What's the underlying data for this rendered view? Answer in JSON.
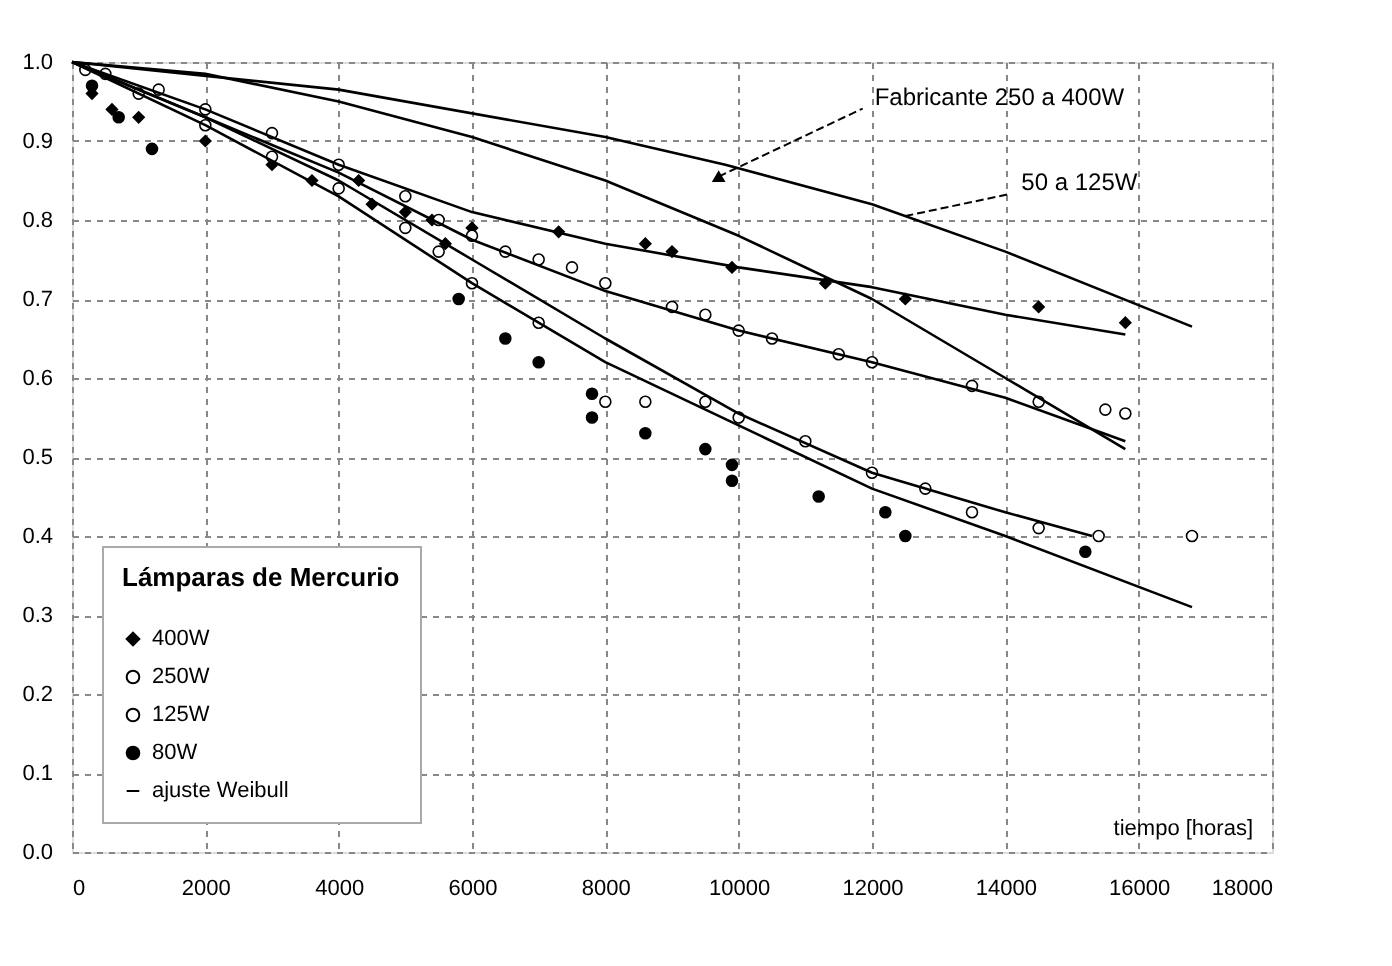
{
  "chart_data": {
    "type": "scatter",
    "xlabel": "tiempo [horas]",
    "legend_title": "Lámparas de Mercurio",
    "xlim": [
      0,
      18000
    ],
    "ylim": [
      0,
      1.0
    ],
    "xticks": [
      0,
      2000,
      4000,
      6000,
      8000,
      10000,
      12000,
      14000,
      16000,
      18000
    ],
    "yticks": [
      {
        "value": 0,
        "label": "0.0"
      },
      0.1,
      0.2,
      0.3,
      0.4,
      0.5,
      0.6,
      0.7,
      0.8,
      0.9,
      {
        "value": 1,
        "label": "1.0"
      }
    ],
    "grid": true,
    "legend": "bottom left",
    "annotations": [
      {
        "text": "Fabricante 250 a 400W",
        "x": 9700,
        "y": 0.855
      },
      {
        "text": "50 a 125W",
        "x": 12500,
        "y": 0.805
      }
    ],
    "series": [
      {
        "name": "400W",
        "marker": "diamond",
        "color": "#000000",
        "x": [
          300,
          600,
          1000,
          2000,
          3000,
          3600,
          4300,
          4500,
          5000,
          5400,
          5600,
          6000,
          7300,
          8600,
          9000,
          9900,
          11300,
          12500,
          14500,
          15800
        ],
        "values": [
          0.96,
          0.94,
          0.93,
          0.9,
          0.87,
          0.85,
          0.85,
          0.82,
          0.81,
          0.8,
          0.77,
          0.79,
          0.785,
          0.77,
          0.76,
          0.74,
          0.72,
          0.7,
          0.69,
          0.67
        ]
      },
      {
        "name": "250W",
        "marker": "circle",
        "color": "#ffffff",
        "x": [
          500,
          1300,
          2000,
          3000,
          4000,
          5000,
          5500,
          6000,
          6500,
          7000,
          7500,
          8000,
          9000,
          9500,
          10000,
          10500,
          11500,
          12000,
          13500,
          14500,
          15500,
          15800
        ],
        "values": [
          0.985,
          0.965,
          0.94,
          0.91,
          0.87,
          0.83,
          0.8,
          0.78,
          0.76,
          0.75,
          0.74,
          0.72,
          0.69,
          0.68,
          0.66,
          0.65,
          0.63,
          0.62,
          0.59,
          0.57,
          0.56,
          0.555
        ]
      },
      {
        "name": "125W",
        "marker": "circle",
        "color": "#ffffff",
        "x": [
          200,
          1000,
          2000,
          3000,
          4000,
          5000,
          5500,
          6000,
          7000,
          8000,
          8600,
          9500,
          10000,
          11000,
          12000,
          12800,
          13500,
          14500,
          15400,
          16800
        ],
        "values": [
          0.99,
          0.96,
          0.92,
          0.88,
          0.84,
          0.79,
          0.76,
          0.72,
          0.67,
          0.57,
          0.57,
          0.57,
          0.55,
          0.52,
          0.48,
          0.46,
          0.43,
          0.41,
          0.4,
          0.4
        ]
      },
      {
        "name": "80W",
        "marker": "circle",
        "color": "#000000",
        "x": [
          300,
          700,
          1200,
          5800,
          6500,
          7000,
          7800,
          7800,
          8600,
          9500,
          9900,
          9900,
          11200,
          12200,
          12500,
          15200
        ],
        "values": [
          0.97,
          0.93,
          0.89,
          0.7,
          0.65,
          0.62,
          0.58,
          0.55,
          0.53,
          0.51,
          0.49,
          0.47,
          0.45,
          0.43,
          0.4,
          0.38
        ]
      },
      {
        "name": "ajuste Weibull",
        "type": "line",
        "marker": "none",
        "color": "#000000",
        "x": [
          0,
          2000,
          4000,
          6000,
          8000,
          10000,
          12000,
          14000,
          15800
        ],
        "values": [
          1,
          0.94,
          0.87,
          0.81,
          0.77,
          0.74,
          0.715,
          0.68,
          0.655
        ]
      },
      {
        "type": "line",
        "marker": "none",
        "color": "#000000",
        "x": [
          0,
          2000,
          4000,
          6000,
          8000,
          10000,
          12000,
          14000,
          15800
        ],
        "values": [
          1,
          0.93,
          0.86,
          0.775,
          0.71,
          0.66,
          0.62,
          0.575,
          0.52
        ]
      },
      {
        "type": "line",
        "marker": "none",
        "color": "#000000",
        "x": [
          0,
          2000,
          4000,
          6000,
          8000,
          10000,
          12000,
          14000,
          15300
        ],
        "values": [
          1,
          0.93,
          0.85,
          0.75,
          0.65,
          0.555,
          0.48,
          0.43,
          0.4
        ]
      },
      {
        "type": "line",
        "marker": "none",
        "color": "#000000",
        "x": [
          0,
          2000,
          4000,
          6000,
          8000,
          10000,
          12000,
          14000,
          16800
        ],
        "values": [
          1,
          0.92,
          0.83,
          0.72,
          0.62,
          0.54,
          0.46,
          0.4,
          0.31
        ]
      },
      {
        "type": "line",
        "marker": "none",
        "color": "#000000",
        "x": [
          0,
          4000,
          8000,
          9800,
          12000,
          14000,
          16800
        ],
        "values": [
          1,
          0.965,
          0.905,
          0.87,
          0.82,
          0.76,
          0.665
        ]
      },
      {
        "type": "line",
        "marker": "none",
        "color": "#000000",
        "x": [
          0,
          2000,
          4000,
          6000,
          8000,
          10000,
          12000,
          14000,
          15800
        ],
        "values": [
          1,
          0.985,
          0.95,
          0.905,
          0.85,
          0.78,
          0.7,
          0.6,
          0.51
        ]
      },
      {
        "marker": "triangle",
        "color": "#000000",
        "x": [
          9700
        ],
        "values": [
          0.855
        ]
      }
    ]
  }
}
